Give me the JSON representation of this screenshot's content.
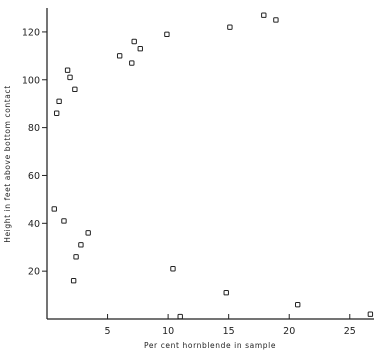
{
  "chart_data": {
    "type": "scatter",
    "title": "",
    "xlabel": "Per cent hornblende in sample",
    "ylabel": "Height in feet above bottom contact",
    "xlim": [
      0,
      27
    ],
    "ylim": [
      0,
      130
    ],
    "x_ticks": [
      5,
      10,
      15,
      20,
      25
    ],
    "y_ticks": [
      20,
      40,
      60,
      80,
      100,
      120
    ],
    "grid": false,
    "legend": "none",
    "series": [
      {
        "points": [
          [
            0.6,
            46
          ],
          [
            0.8,
            86
          ],
          [
            1.0,
            91
          ],
          [
            1.4,
            41
          ],
          [
            1.7,
            104
          ],
          [
            1.9,
            101
          ],
          [
            2.3,
            96
          ],
          [
            2.2,
            16
          ],
          [
            2.4,
            26
          ],
          [
            2.8,
            31
          ],
          [
            3.4,
            36
          ],
          [
            6.0,
            110
          ],
          [
            7.0,
            107
          ],
          [
            7.2,
            116
          ],
          [
            7.7,
            113
          ],
          [
            9.9,
            119
          ],
          [
            10.4,
            21
          ],
          [
            11.0,
            1
          ],
          [
            14.8,
            11
          ],
          [
            15.1,
            122
          ],
          [
            17.9,
            127
          ],
          [
            18.9,
            125
          ],
          [
            20.7,
            6
          ],
          [
            26.7,
            2
          ]
        ]
      }
    ]
  }
}
